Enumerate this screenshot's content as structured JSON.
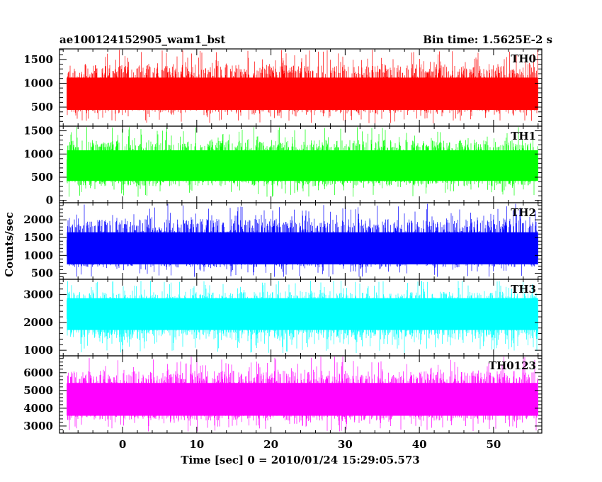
{
  "chart_data": {
    "type": "line",
    "title": "ae100124152905_wam1_bst",
    "bin_time_label": "Bin time: 1.5625E-2 s",
    "xlabel": "Time [sec] 0 = 2010/01/24 15:29:05.573",
    "ylabel": "Counts/sec",
    "xlim": [
      -8.5,
      56.5
    ],
    "data_x_range": [
      -7.5,
      56.0
    ],
    "x_ticks": [
      0,
      10,
      20,
      30,
      40,
      50
    ],
    "panels": [
      {
        "name": "TH0",
        "color": "#ff0000",
        "ylim": [
          100,
          1720
        ],
        "y_ticks": [
          500,
          1000,
          1500
        ],
        "mean": 780,
        "min": 160,
        "max": 1700
      },
      {
        "name": "TH1",
        "color": "#00ff00",
        "ylim": [
          -50,
          1600
        ],
        "y_ticks": [
          0,
          500,
          1000,
          1500
        ],
        "mean": 750,
        "min": 80,
        "max": 1580
      },
      {
        "name": "TH2",
        "color": "#0000ff",
        "ylim": [
          330,
          2480
        ],
        "y_ticks": [
          500,
          1000,
          1500,
          2000
        ],
        "mean": 1200,
        "min": 400,
        "max": 2450
      },
      {
        "name": "TH3",
        "color": "#00ffff",
        "ylim": [
          800,
          3550
        ],
        "y_ticks": [
          1000,
          2000,
          3000
        ],
        "mean": 2300,
        "min": 900,
        "max": 3500
      },
      {
        "name": "TH0123",
        "color": "#ff00ff",
        "ylim": [
          2600,
          6950
        ],
        "y_ticks": [
          3000,
          4000,
          5000,
          6000
        ],
        "mean": 4500,
        "min": 2700,
        "max": 6900
      }
    ],
    "grid": false
  }
}
